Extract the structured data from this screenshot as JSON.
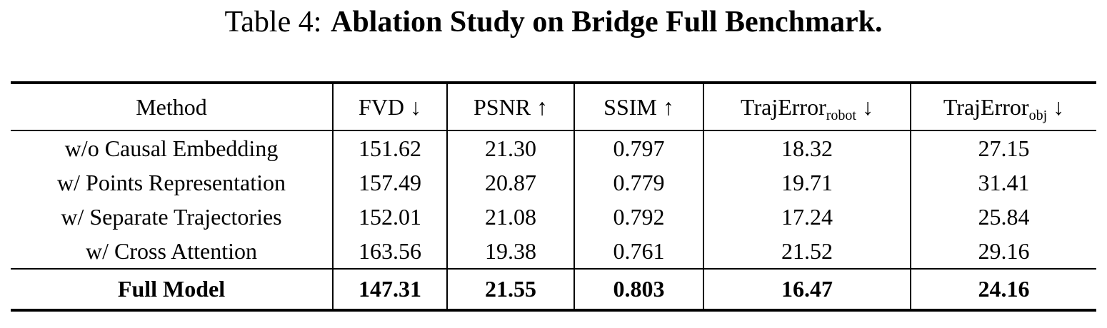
{
  "caption": {
    "prefix": "Table 4:",
    "title": "Ablation Study on Bridge Full Benchmark."
  },
  "table": {
    "header": {
      "method": "Method",
      "fvd": "FVD",
      "fvd_arrow": "↓",
      "psnr": "PSNR",
      "psnr_arrow": "↑",
      "ssim": "SSIM",
      "ssim_arrow": "↑",
      "traj_robot": "TrajError",
      "traj_robot_sub": "robot",
      "traj_robot_arrow": "↓",
      "traj_obj": "TrajError",
      "traj_obj_sub": "obj",
      "traj_obj_arrow": "↓"
    },
    "rows": [
      {
        "cells": [
          "w/o Causal Embedding",
          "151.62",
          "21.30",
          "0.797",
          "18.32",
          "27.15"
        ]
      },
      {
        "cells": [
          "w/ Points Representation",
          "157.49",
          "20.87",
          "0.779",
          "19.71",
          "31.41"
        ]
      },
      {
        "cells": [
          "w/ Separate Trajectories",
          "152.01",
          "21.08",
          "0.792",
          "17.24",
          "25.84"
        ]
      },
      {
        "cells": [
          "w/ Cross Attention",
          "163.56",
          "19.38",
          "0.761",
          "21.52",
          "29.16"
        ]
      }
    ],
    "full_model": {
      "cells": [
        "Full Model",
        "147.31",
        "21.55",
        "0.803",
        "16.47",
        "24.16"
      ]
    }
  }
}
